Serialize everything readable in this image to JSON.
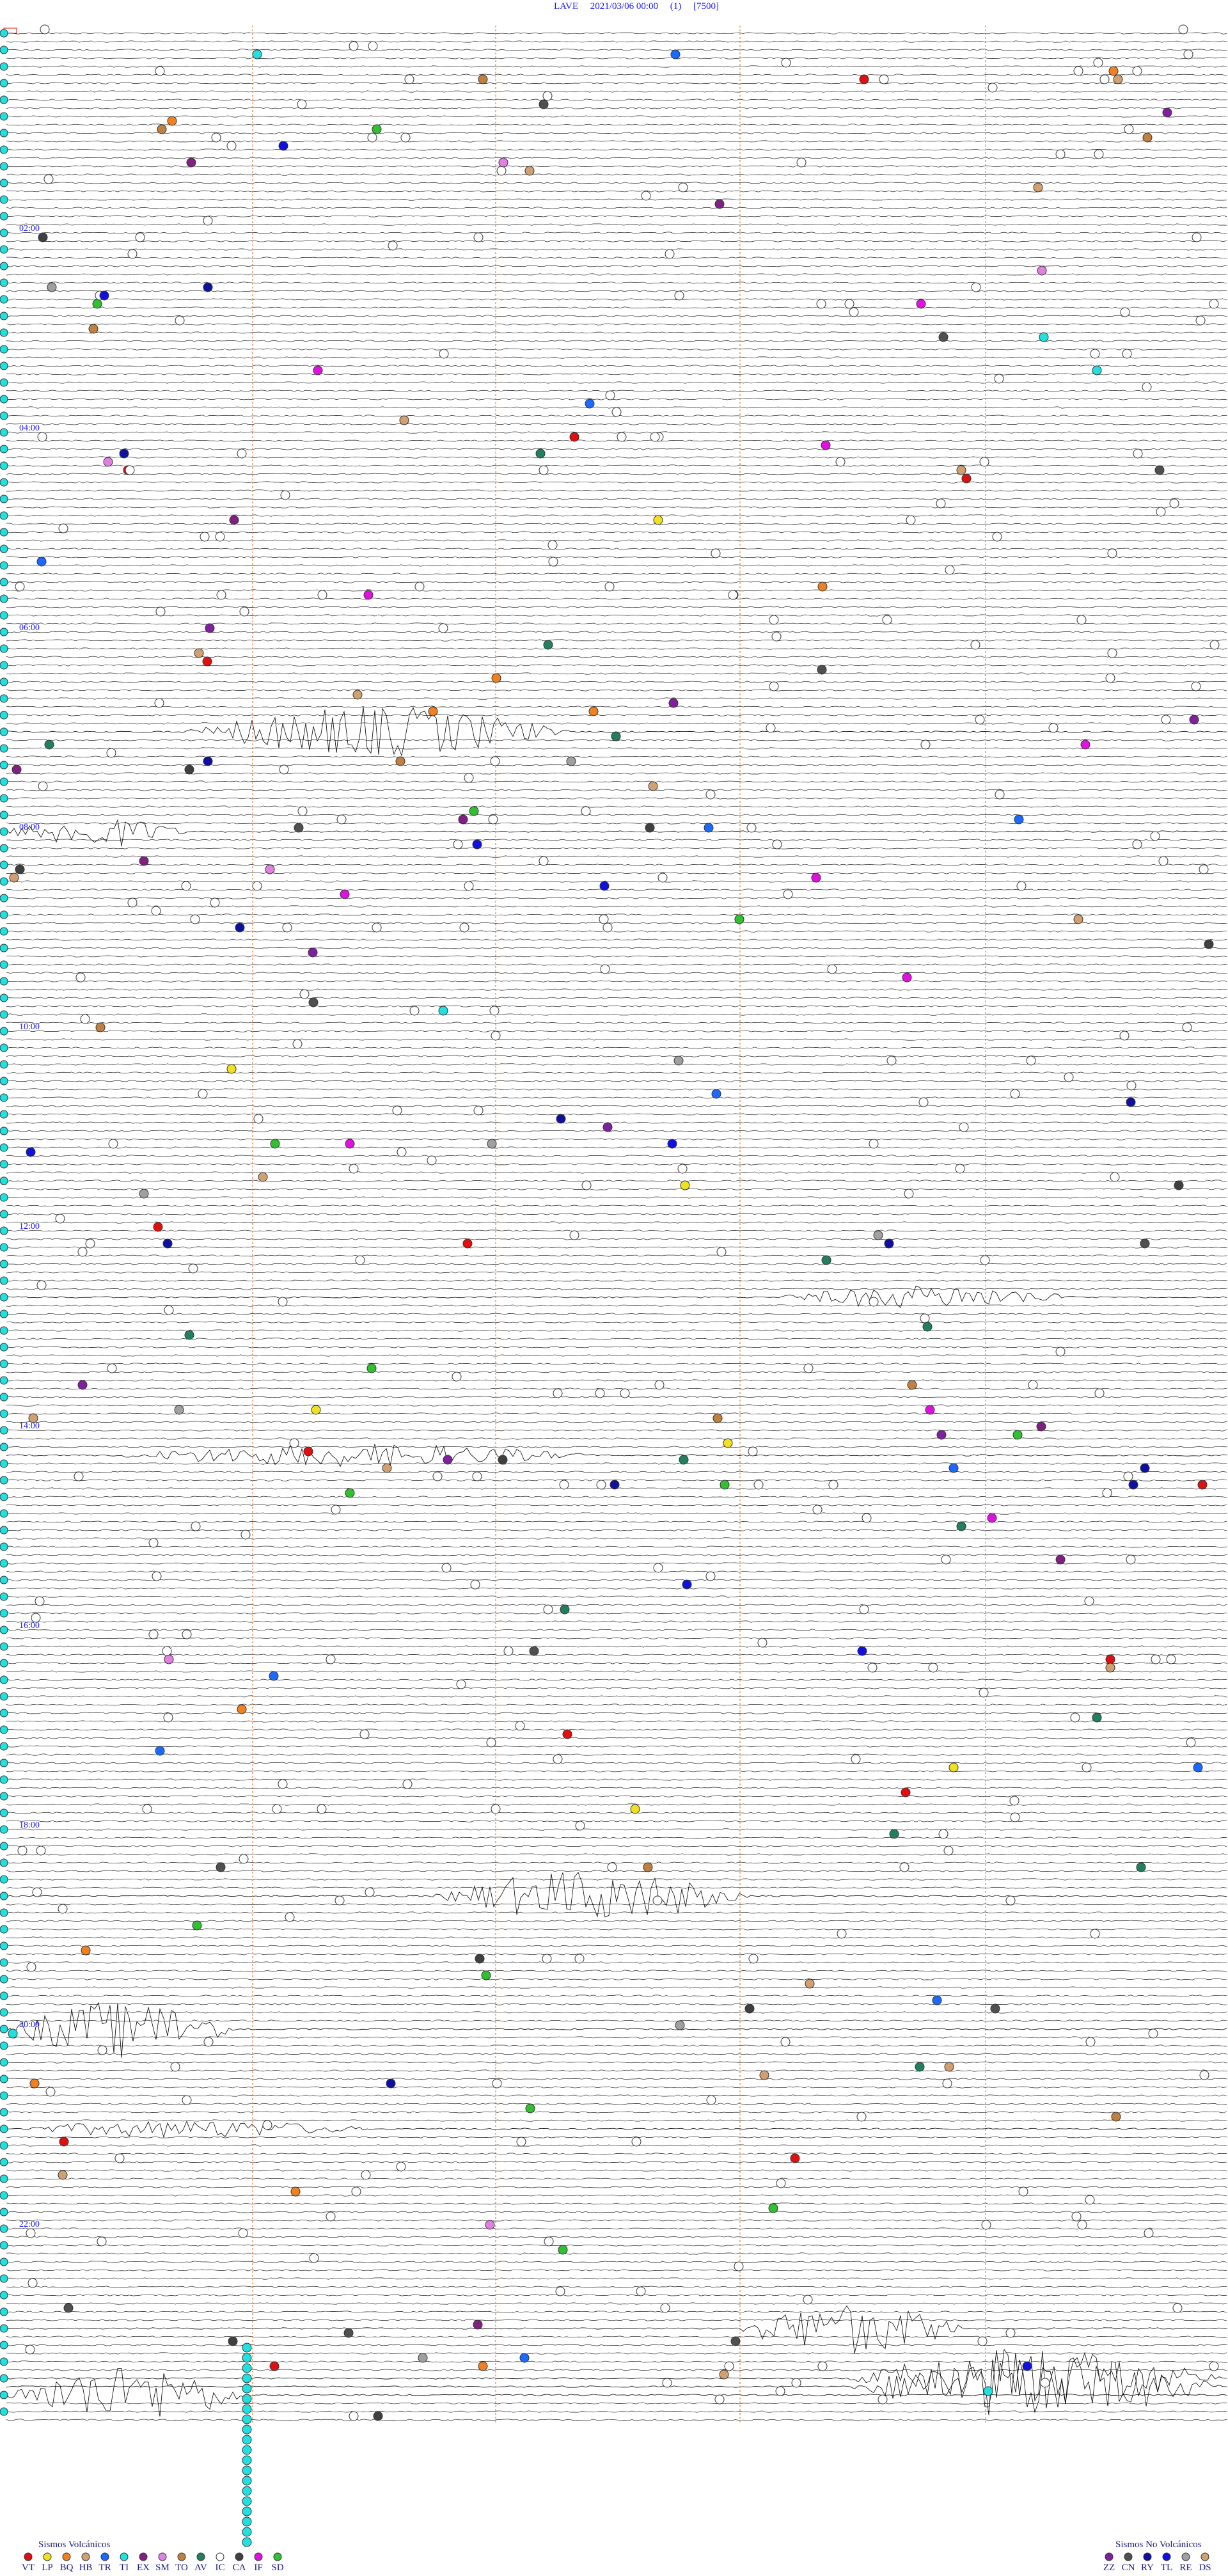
{
  "header": {
    "title": "LAVE     2021/03/06 00:00     (1)     [7500]"
  },
  "hour_labels": [
    "02:00",
    "04:00",
    "06:00",
    "08:00",
    "10:00",
    "12:00",
    "14:00",
    "16:00",
    "18:00",
    "20:00",
    "22:00"
  ],
  "legend_volcanic": {
    "title": "Sismos Volcánicos",
    "items": [
      {
        "code": "VT",
        "color": "#e01010"
      },
      {
        "code": "LP",
        "color": "#f0e020"
      },
      {
        "code": "BQ",
        "color": "#f08020"
      },
      {
        "code": "HB",
        "color": "#d0a070"
      },
      {
        "code": "TR",
        "color": "#1a6aff"
      },
      {
        "code": "TI",
        "color": "#20e0e0"
      },
      {
        "code": "EX",
        "color": "#802080"
      },
      {
        "code": "SM",
        "color": "#e080e0"
      },
      {
        "code": "TO",
        "color": "#c08040"
      },
      {
        "code": "AV",
        "color": "#208060"
      },
      {
        "code": "IC",
        "color": "#ffffff"
      },
      {
        "code": "CA",
        "color": "#404040"
      },
      {
        "code": "IF",
        "color": "#e010e0"
      },
      {
        "code": "SD",
        "color": "#30c030"
      }
    ]
  },
  "legend_non_volcanic": {
    "title": "Sismos No Volcánicos",
    "items": [
      {
        "code": "ZZ",
        "color": "#8020a0"
      },
      {
        "code": "CN",
        "color": "#505050"
      },
      {
        "code": "RY",
        "color": "#1010a0"
      },
      {
        "code": "TL",
        "color": "#1010e0"
      },
      {
        "code": "RE",
        "color": "#a0a0a0"
      },
      {
        "code": "DS",
        "color": "#d0a070"
      }
    ]
  }
}
